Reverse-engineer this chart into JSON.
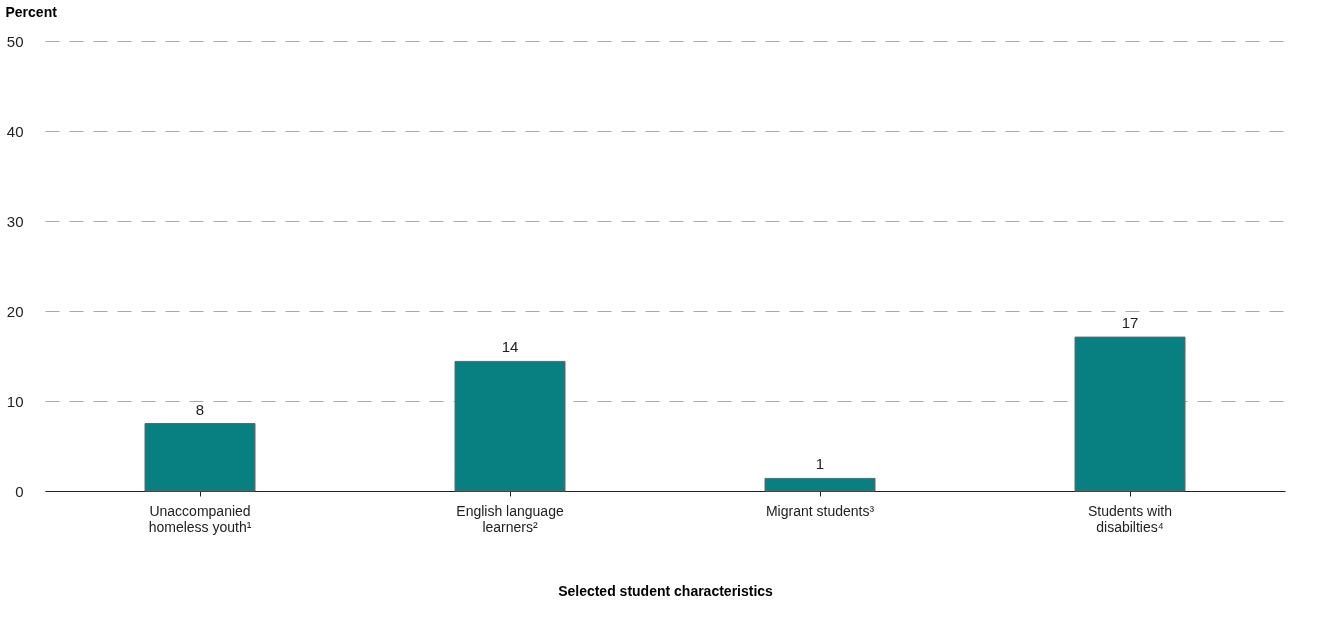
{
  "chart_data": {
    "type": "bar",
    "categories": [
      "Unaccompanied homeless youth¹",
      "English language learners²",
      "Migrant students³",
      "Students with disabilties⁴"
    ],
    "values": [
      7.5,
      14.4,
      1.4,
      17.1
    ],
    "value_labels": [
      "8",
      "14",
      "1",
      "17"
    ],
    "color": "#087f80",
    "xlabel": "Selected student characteristics",
    "ylabel": "Percent",
    "ylim": [
      0,
      50
    ],
    "yticks": [
      0,
      10,
      20,
      30,
      40,
      50
    ],
    "grid": "y"
  }
}
